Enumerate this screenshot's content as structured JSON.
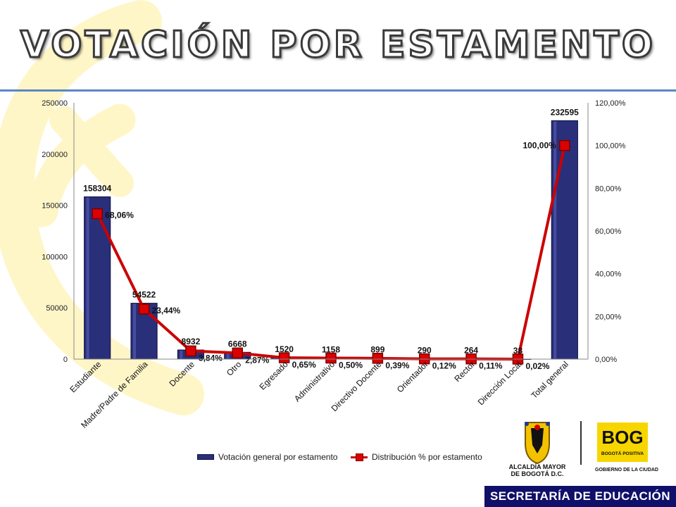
{
  "title": "VOTACIÓN POR ESTAMENTO",
  "chart_data": {
    "type": "bar",
    "categories": [
      "Estudiante",
      "Madre/Padre de Familia",
      "Docente",
      "Otro",
      "Egresado",
      "Administrativo",
      "Directivo Docente",
      "Orientador",
      "Rector",
      "Dirección Local",
      "Total general"
    ],
    "series": [
      {
        "name": "Votación general por estamento",
        "type": "bar",
        "axis": "left",
        "values": [
          158304,
          54522,
          8932,
          6668,
          1520,
          1158,
          899,
          290,
          264,
          38,
          232595
        ],
        "labels": [
          "158304",
          "54522",
          "8932",
          "6668",
          "1520",
          "1158",
          "899",
          "290",
          "264",
          "38",
          "232595"
        ],
        "color": "#2a2f7a"
      },
      {
        "name": "Distribución % por estamento",
        "type": "line",
        "axis": "right",
        "values": [
          68.06,
          23.44,
          3.84,
          2.87,
          0.65,
          0.5,
          0.39,
          0.12,
          0.11,
          0.02,
          100.0
        ],
        "labels": [
          "68,06%",
          "23,44%",
          "3,84%",
          "2,87%",
          "0,65%",
          "0,50%",
          "0,39%",
          "0,12%",
          "0,11%",
          "0,02%",
          "100,00%"
        ],
        "color": "#cc0000"
      }
    ],
    "y_left": {
      "min": 0,
      "max": 250000,
      "ticks": [
        "0",
        "50000",
        "100000",
        "150000",
        "200000",
        "250000"
      ]
    },
    "y_right": {
      "min": 0,
      "max": 120,
      "ticks": [
        "0,00%",
        "20,00%",
        "40,00%",
        "60,00%",
        "80,00%",
        "100,00%",
        "120,00%"
      ]
    },
    "grid": false,
    "legend_position": "bottom"
  },
  "logos": {
    "alcaldia_line1": "ALCALDÍA MAYOR",
    "alcaldia_line2": "DE BOGOTÁ D.C.",
    "bog_name": "BOG",
    "bog_tagline": "BOGOTÁ POSITIVA",
    "bog_sub": "GOBIERNO DE LA CIUDAD"
  },
  "footer": "SECRETARÍA DE EDUCACIÓN",
  "colors": {
    "bar": "#2a2f7a",
    "line": "#cc0000",
    "title_rule": "#5b86c5",
    "footer_bg": "#10106a",
    "swirl": "#fff5c2"
  }
}
